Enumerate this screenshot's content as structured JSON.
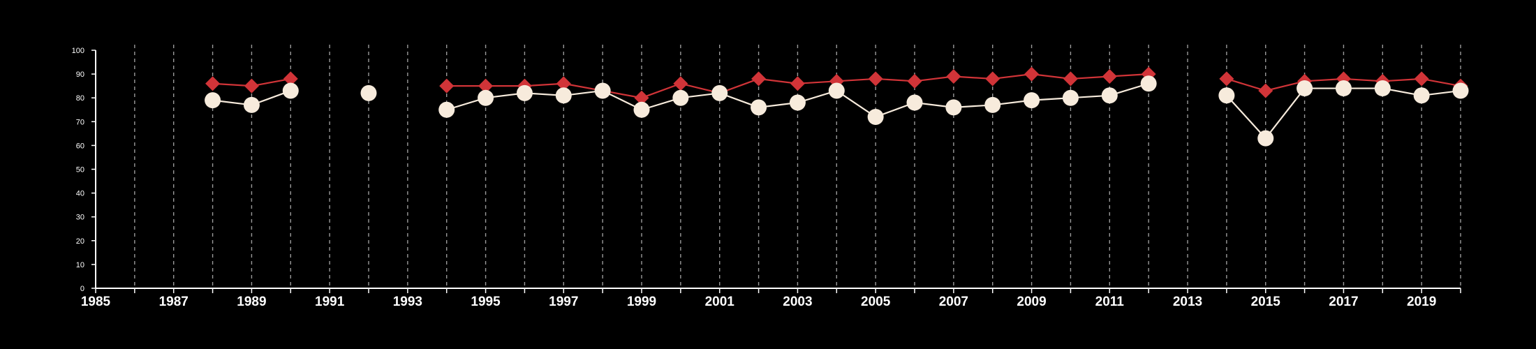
{
  "chart_data": {
    "type": "line",
    "title": "",
    "xlabel": "",
    "ylabel": "",
    "xlim": [
      1985,
      2020
    ],
    "ylim": [
      0,
      100
    ],
    "x_ticks": [
      "1985",
      "1987",
      "1989",
      "1991",
      "1993",
      "1995",
      "1997",
      "1999",
      "2001",
      "2003",
      "2005",
      "2007",
      "2009",
      "2011",
      "2013",
      "2015",
      "2017",
      "2019"
    ],
    "y_ticks": [
      "0",
      "10",
      "20",
      "30",
      "40",
      "50",
      "60",
      "70",
      "80",
      "90",
      "100"
    ],
    "grid": "vertical dashed lines at every year",
    "legend": "none",
    "x": [
      1988,
      1989,
      1990,
      1991,
      1992,
      1993,
      1994,
      1995,
      1996,
      1997,
      1998,
      1999,
      2000,
      2001,
      2002,
      2003,
      2004,
      2005,
      2006,
      2007,
      2008,
      2009,
      2010,
      2011,
      2012,
      2013,
      2014,
      2015,
      2016,
      2017,
      2018,
      2019,
      2020
    ],
    "series": [
      {
        "marker": "diamond",
        "color": "#d13438",
        "values": [
          86,
          85,
          88,
          null,
          82,
          null,
          85,
          85,
          85,
          86,
          83,
          80,
          86,
          82,
          88,
          86,
          87,
          88,
          87,
          89,
          88,
          90,
          88,
          89,
          90,
          null,
          88,
          83,
          87,
          88,
          87,
          88,
          85
        ]
      },
      {
        "marker": "circle",
        "color": "#f7ebdc",
        "values": [
          79,
          77,
          83,
          null,
          82,
          null,
          75,
          80,
          82,
          81,
          83,
          75,
          80,
          82,
          76,
          78,
          83,
          72,
          78,
          76,
          77,
          79,
          80,
          81,
          86,
          null,
          81,
          63,
          84,
          84,
          84,
          81,
          83
        ]
      }
    ]
  }
}
